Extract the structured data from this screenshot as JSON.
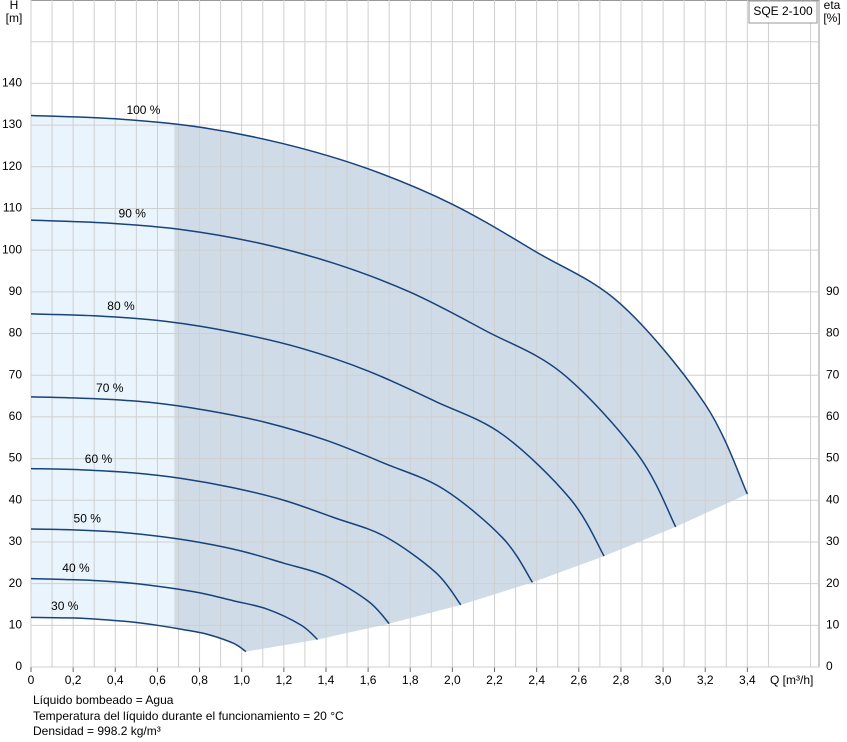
{
  "chart_data": {
    "type": "line",
    "model": "SQE 2-100",
    "ylabel": [
      "H",
      "[m]"
    ],
    "y2label": [
      "eta",
      "[%]"
    ],
    "xlabel": "Q [m³/h]",
    "notes": [
      "Líquido bombeado = Agua",
      "Temperatura del líquido durante el funcionamiento = 20 °C",
      "Densidad = 998.2 kg/m³"
    ],
    "xlim": [
      0,
      3.74
    ],
    "xticks": [
      0,
      {
        "value": 0.2,
        "label": "0,2"
      },
      {
        "value": 0.4,
        "label": "0,4"
      },
      {
        "value": 0.6,
        "label": "0,6"
      },
      {
        "value": 0.8,
        "label": "0,8"
      },
      {
        "value": 1.0,
        "label": "1,0"
      },
      {
        "value": 1.2,
        "label": "1,2"
      },
      {
        "value": 1.4,
        "label": "1,4"
      },
      {
        "value": 1.6,
        "label": "1,6"
      },
      {
        "value": 1.8,
        "label": "1,8"
      },
      {
        "value": 2.0,
        "label": "2,0"
      },
      {
        "value": 2.2,
        "label": "2,2"
      },
      {
        "value": 2.4,
        "label": "2,4"
      },
      {
        "value": 2.6,
        "label": "2,6"
      },
      {
        "value": 2.8,
        "label": "2,8"
      },
      {
        "value": 3.0,
        "label": "3,0"
      },
      {
        "value": 3.2,
        "label": "3,2"
      },
      {
        "value": 3.4,
        "label": "3,4"
      }
    ],
    "xminorticks": [
      0.1,
      0.3,
      0.5,
      0.7,
      0.9,
      1.1,
      1.3,
      1.5,
      1.7,
      1.9,
      2.1,
      2.3,
      2.5,
      2.7,
      2.9,
      3.1,
      3.3,
      3.5,
      3.7
    ],
    "ylim": [
      0,
      160
    ],
    "yticks": [
      0,
      10,
      20,
      30,
      40,
      50,
      60,
      70,
      80,
      90,
      100,
      110,
      120,
      130,
      140
    ],
    "yminorticks": [
      150
    ],
    "y2lim": [
      0,
      160
    ],
    "y2ticks": [
      0,
      10,
      20,
      30,
      40,
      50,
      60,
      70,
      80,
      90
    ],
    "grid": true,
    "shade_from_x": 0.68,
    "series": [
      {
        "name": "100 %",
        "color": "#17427a",
        "x": [
          0,
          0.4,
          0.8,
          1.2,
          1.6,
          2.0,
          2.4,
          2.8,
          3.2,
          3.4
        ],
        "values": [
          132.3,
          131.5,
          129.5,
          125.5,
          119.5,
          111,
          99.5,
          87,
          63,
          41.5
        ]
      },
      {
        "name": "90 %",
        "color": "#17427a",
        "x": [
          0,
          0.36,
          0.72,
          1.08,
          1.44,
          1.8,
          2.16,
          2.52,
          2.88,
          3.06
        ],
        "values": [
          107.2,
          106.5,
          104.9,
          101.7,
          96.8,
          89.9,
          80.6,
          70.5,
          51.0,
          33.6
        ]
      },
      {
        "name": "80 %",
        "color": "#17427a",
        "x": [
          0,
          0.32,
          0.64,
          0.96,
          1.28,
          1.6,
          1.92,
          2.24,
          2.56,
          2.72
        ],
        "values": [
          84.7,
          84.2,
          82.9,
          80.3,
          76.5,
          71.0,
          63.7,
          55.7,
          40.3,
          26.6
        ]
      },
      {
        "name": "70 %",
        "color": "#17427a",
        "x": [
          0,
          0.28,
          0.56,
          0.84,
          1.12,
          1.4,
          1.68,
          1.96,
          2.24,
          2.38
        ],
        "values": [
          64.8,
          64.4,
          63.5,
          61.5,
          58.6,
          54.4,
          48.8,
          42.6,
          30.9,
          20.3
        ]
      },
      {
        "name": "60 %",
        "color": "#17427a",
        "x": [
          0,
          0.24,
          0.48,
          0.72,
          0.96,
          1.2,
          1.44,
          1.68,
          1.92,
          2.04
        ],
        "values": [
          47.6,
          47.3,
          46.6,
          45.2,
          43.0,
          40.0,
          35.8,
          31.3,
          22.7,
          14.9
        ]
      },
      {
        "name": "50 %",
        "color": "#17427a",
        "x": [
          0,
          0.2,
          0.4,
          0.6,
          0.8,
          1.0,
          1.2,
          1.4,
          1.6,
          1.7
        ],
        "values": [
          33.1,
          32.9,
          32.4,
          31.4,
          29.9,
          27.8,
          24.9,
          21.8,
          15.8,
          10.4
        ]
      },
      {
        "name": "40 %",
        "color": "#17427a",
        "x": [
          0,
          0.16,
          0.32,
          0.48,
          0.64,
          0.8,
          0.96,
          1.12,
          1.28,
          1.36
        ],
        "values": [
          21.2,
          21.0,
          20.7,
          20.1,
          19.1,
          17.8,
          15.9,
          13.9,
          10.1,
          6.6
        ]
      },
      {
        "name": "30 %",
        "color": "#17427a",
        "x": [
          0,
          0.12,
          0.24,
          0.36,
          0.48,
          0.6,
          0.72,
          0.84,
          0.96,
          1.02
        ],
        "values": [
          11.9,
          11.8,
          11.7,
          11.3,
          10.8,
          10.0,
          9.0,
          7.8,
          5.7,
          3.7
        ]
      }
    ]
  }
}
